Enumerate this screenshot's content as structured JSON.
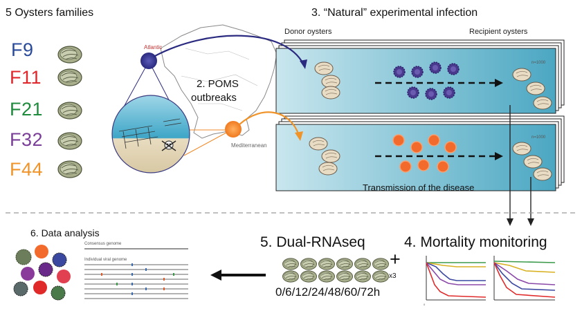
{
  "families": {
    "title": "5 Oysters families",
    "items": [
      {
        "label": "F9",
        "color": "#2a4a9a"
      },
      {
        "label": "F11",
        "color": "#e0262b"
      },
      {
        "label": "F21",
        "color": "#1e8a3c"
      },
      {
        "label": "F32",
        "color": "#7a3e98"
      },
      {
        "label": "F44",
        "color": "#f0942a"
      }
    ]
  },
  "map": {
    "atlantic_label": "Atlantic",
    "mediterranean_label": "Mediterranean",
    "outbreak_label_line1": "2. POMS",
    "outbreak_label_line2": "outbreaks",
    "atlantic_color": "#2f2f8a",
    "mediterranean_color": "#f08a2a"
  },
  "infection": {
    "title": "3. “Natural” experimental infection",
    "donor_label": "Donor oysters",
    "recipient_label": "Recipient oysters",
    "n_label_top": "n=1000",
    "n_label_bottom": "n=1000",
    "transmission_label": "Transmission of the disease",
    "tank_color": "#5fb3cc"
  },
  "mortality": {
    "title": "4. Mortality monitoring"
  },
  "rnaseq": {
    "title": "5. Dual-RNAseq",
    "replicates": "x3",
    "timepoints": "0/6/12/24/48/60/72h",
    "plus": "+"
  },
  "analysis": {
    "title": "6. Data analysis",
    "consensus_label": "Consensus genome",
    "individual_label": "Individual viral genome"
  }
}
